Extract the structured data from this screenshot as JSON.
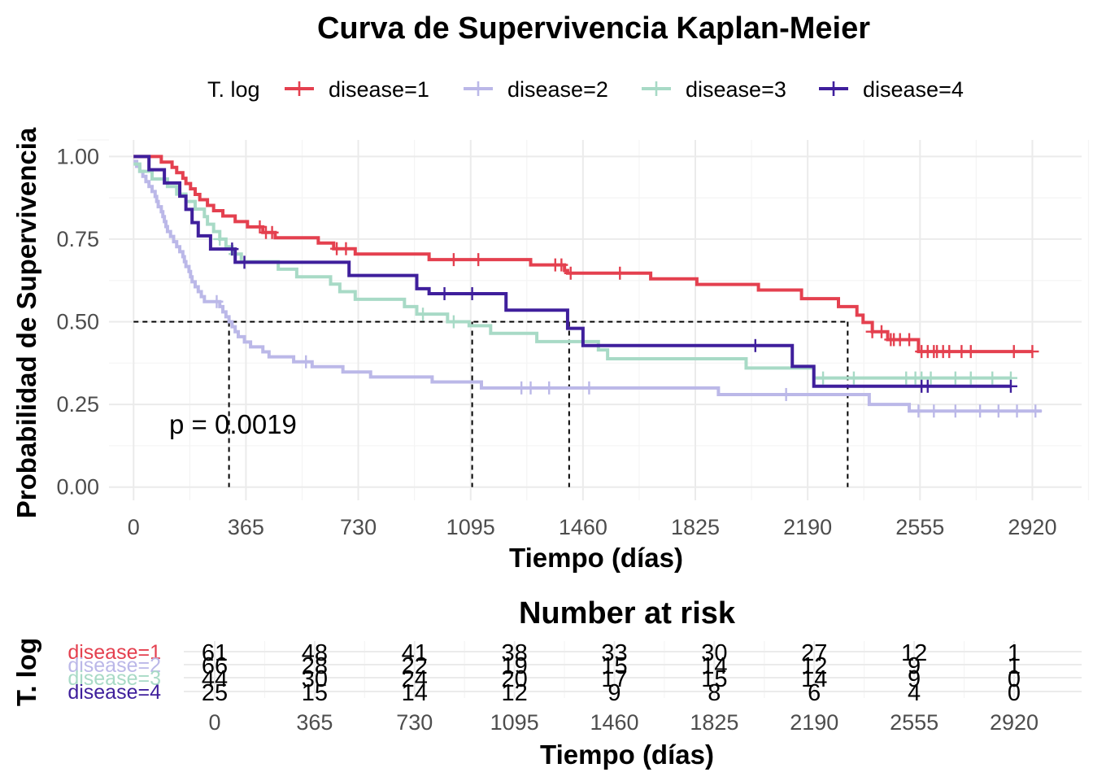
{
  "chart_data": [
    {
      "type": "line",
      "title": "Curva de Supervivencia Kaplan-Meier",
      "xlabel": "Tiempo (días)",
      "ylabel": "Probabilidad de Supervivencia",
      "xlim": [
        -80,
        3080
      ],
      "ylim": [
        -0.04,
        1.05
      ],
      "x_ticks": [
        0,
        365,
        730,
        1095,
        1460,
        1825,
        2190,
        2555,
        2920
      ],
      "y_ticks": [
        0.0,
        0.25,
        0.5,
        0.75,
        1.0
      ],
      "y_tick_labels": [
        "0.00",
        "0.25",
        "0.50",
        "0.75",
        "1.00"
      ],
      "grid": true,
      "legend": {
        "title": "T. log",
        "position": "top"
      },
      "annotation": "p = 0.0019",
      "median_survival": [
        {
          "series": "disease=1",
          "x": 2320
        },
        {
          "series": "disease=2",
          "x": 310
        },
        {
          "series": "disease=3",
          "x": 1100
        },
        {
          "series": "disease=4",
          "x": 1415
        }
      ],
      "series": [
        {
          "name": "disease=1",
          "color": "#e4404f",
          "steps": [
            [
              0,
              1.0
            ],
            [
              90,
              0.983
            ],
            [
              125,
              0.967
            ],
            [
              140,
              0.951
            ],
            [
              160,
              0.934
            ],
            [
              170,
              0.918
            ],
            [
              185,
              0.902
            ],
            [
              200,
              0.885
            ],
            [
              215,
              0.869
            ],
            [
              240,
              0.852
            ],
            [
              260,
              0.836
            ],
            [
              290,
              0.82
            ],
            [
              330,
              0.803
            ],
            [
              370,
              0.787
            ],
            [
              420,
              0.77
            ],
            [
              460,
              0.754
            ],
            [
              600,
              0.738
            ],
            [
              650,
              0.721
            ],
            [
              720,
              0.705
            ],
            [
              960,
              0.688
            ],
            [
              1290,
              0.672
            ],
            [
              1400,
              0.655
            ],
            [
              1410,
              0.647
            ],
            [
              1680,
              0.63
            ],
            [
              1830,
              0.613
            ],
            [
              2030,
              0.596
            ],
            [
              2170,
              0.57
            ],
            [
              2290,
              0.546
            ],
            [
              2350,
              0.52
            ],
            [
              2370,
              0.498
            ],
            [
              2400,
              0.47
            ],
            [
              2450,
              0.446
            ],
            [
              2550,
              0.41
            ],
            [
              2920,
              0.41
            ]
          ],
          "censor_x": [
            410,
            430,
            450,
            660,
            690,
            1040,
            1120,
            1370,
            1390,
            1420,
            1580,
            2400,
            2430,
            2460,
            2470,
            2490,
            2520,
            2560,
            2580,
            2600,
            2610,
            2630,
            2650,
            2690,
            2720,
            2860,
            2920
          ]
        },
        {
          "name": "disease=2",
          "color": "#bbb8e8",
          "steps": [
            [
              0,
              0.985
            ],
            [
              10,
              0.97
            ],
            [
              20,
              0.955
            ],
            [
              30,
              0.94
            ],
            [
              40,
              0.924
            ],
            [
              50,
              0.909
            ],
            [
              60,
              0.894
            ],
            [
              70,
              0.879
            ],
            [
              75,
              0.864
            ],
            [
              80,
              0.848
            ],
            [
              90,
              0.833
            ],
            [
              95,
              0.818
            ],
            [
              100,
              0.803
            ],
            [
              105,
              0.788
            ],
            [
              110,
              0.773
            ],
            [
              120,
              0.758
            ],
            [
              130,
              0.742
            ],
            [
              140,
              0.727
            ],
            [
              150,
              0.712
            ],
            [
              160,
              0.697
            ],
            [
              165,
              0.682
            ],
            [
              170,
              0.667
            ],
            [
              180,
              0.652
            ],
            [
              185,
              0.636
            ],
            [
              190,
              0.621
            ],
            [
              200,
              0.606
            ],
            [
              210,
              0.591
            ],
            [
              220,
              0.576
            ],
            [
              230,
              0.561
            ],
            [
              280,
              0.546
            ],
            [
              290,
              0.53
            ],
            [
              300,
              0.515
            ],
            [
              310,
              0.5
            ],
            [
              320,
              0.485
            ],
            [
              330,
              0.47
            ],
            [
              340,
              0.455
            ],
            [
              360,
              0.439
            ],
            [
              380,
              0.424
            ],
            [
              420,
              0.409
            ],
            [
              440,
              0.394
            ],
            [
              520,
              0.379
            ],
            [
              580,
              0.364
            ],
            [
              680,
              0.348
            ],
            [
              770,
              0.333
            ],
            [
              970,
              0.318
            ],
            [
              1130,
              0.3
            ],
            [
              1900,
              0.28
            ],
            [
              2390,
              0.25
            ],
            [
              2520,
              0.23
            ],
            [
              2950,
              0.23
            ]
          ],
          "censor_x": [
            270,
            560,
            1260,
            1290,
            1350,
            1480,
            2120,
            2550,
            2600,
            2670,
            2750,
            2810,
            2870,
            2930
          ]
        },
        {
          "name": "disease=3",
          "color": "#a8dac6",
          "steps": [
            [
              0,
              0.977
            ],
            [
              20,
              0.955
            ],
            [
              60,
              0.932
            ],
            [
              110,
              0.909
            ],
            [
              140,
              0.886
            ],
            [
              170,
              0.864
            ],
            [
              200,
              0.841
            ],
            [
              230,
              0.818
            ],
            [
              240,
              0.795
            ],
            [
              260,
              0.773
            ],
            [
              280,
              0.75
            ],
            [
              300,
              0.727
            ],
            [
              320,
              0.705
            ],
            [
              350,
              0.682
            ],
            [
              470,
              0.659
            ],
            [
              530,
              0.636
            ],
            [
              640,
              0.614
            ],
            [
              670,
              0.591
            ],
            [
              720,
              0.568
            ],
            [
              880,
              0.546
            ],
            [
              920,
              0.523
            ],
            [
              1020,
              0.5
            ],
            [
              1090,
              0.488
            ],
            [
              1160,
              0.465
            ],
            [
              1310,
              0.44
            ],
            [
              1510,
              0.415
            ],
            [
              1540,
              0.388
            ],
            [
              1990,
              0.36
            ],
            [
              2210,
              0.33
            ],
            [
              2850,
              0.33
            ]
          ],
          "censor_x": [
            280,
            330,
            940,
            1040,
            2240,
            2340,
            2510,
            2540,
            2560,
            2590,
            2670,
            2720,
            2790,
            2850
          ]
        },
        {
          "name": "disease=4",
          "color": "#3f1f9c",
          "steps": [
            [
              0,
              1.0
            ],
            [
              50,
              0.96
            ],
            [
              80,
              0.96
            ],
            [
              100,
              0.92
            ],
            [
              150,
              0.88
            ],
            [
              170,
              0.84
            ],
            [
              190,
              0.8
            ],
            [
              210,
              0.76
            ],
            [
              250,
              0.72
            ],
            [
              330,
              0.68
            ],
            [
              340,
              0.68
            ],
            [
              700,
              0.64
            ],
            [
              920,
              0.6
            ],
            [
              960,
              0.585
            ],
            [
              1210,
              0.535
            ],
            [
              1410,
              0.48
            ],
            [
              1460,
              0.428
            ],
            [
              2140,
              0.365
            ],
            [
              2210,
              0.305
            ],
            [
              2850,
              0.305
            ]
          ],
          "censor_x": [
            320,
            360,
            1010,
            1100,
            2020,
            2560,
            2580,
            2850
          ]
        }
      ]
    },
    {
      "type": "table",
      "title": "Number at risk",
      "xlabel": "Tiempo (días)",
      "ylabel": "T. log",
      "times": [
        0,
        365,
        730,
        1095,
        1460,
        1825,
        2190,
        2555,
        2920
      ],
      "rows": [
        {
          "name": "disease=1",
          "color": "#e4404f",
          "values": [
            61,
            48,
            41,
            38,
            33,
            30,
            27,
            12,
            1
          ]
        },
        {
          "name": "disease=2",
          "color": "#bbb8e8",
          "values": [
            66,
            28,
            22,
            19,
            15,
            14,
            12,
            9,
            1
          ]
        },
        {
          "name": "disease=3",
          "color": "#a8dac6",
          "values": [
            44,
            30,
            24,
            20,
            17,
            15,
            14,
            9,
            0
          ]
        },
        {
          "name": "disease=4",
          "color": "#3f1f9c",
          "values": [
            25,
            15,
            14,
            12,
            9,
            8,
            6,
            4,
            0
          ]
        }
      ]
    }
  ]
}
